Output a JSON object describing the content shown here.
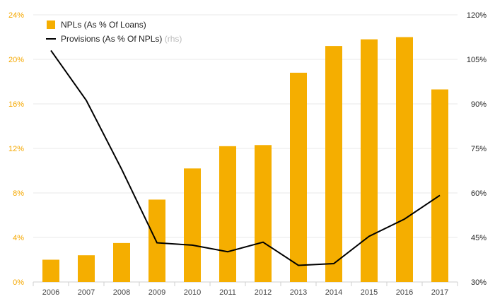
{
  "chart_data": {
    "type": "bar",
    "categories": [
      "2006",
      "2007",
      "2008",
      "2009",
      "2010",
      "2011",
      "2012",
      "2013",
      "2014",
      "2015",
      "2016",
      "2017"
    ],
    "series": [
      {
        "name": "NPLs (As % Of Loans)",
        "type": "bar",
        "axis": "left",
        "color": "#f5ae00",
        "values": [
          2.0,
          2.4,
          3.5,
          7.4,
          10.2,
          12.2,
          12.3,
          18.8,
          21.2,
          21.8,
          22.0,
          17.3
        ]
      },
      {
        "name": "Provisions (As % Of NPLs)",
        "type": "line",
        "axis": "right",
        "color": "#000000",
        "values": [
          108.0,
          91.2,
          68.0,
          43.2,
          42.4,
          40.2,
          43.4,
          35.6,
          36.2,
          45.4,
          51.2,
          59.2
        ]
      }
    ],
    "legend": {
      "bar_label": "NPLs (As % Of Loans)",
      "line_label": "Provisions (As % Of NPLs)",
      "line_suffix": "(rhs)",
      "position": "top-left"
    },
    "y_left": {
      "ylim": [
        0,
        24
      ],
      "ticks": [
        "0%",
        "4%",
        "8%",
        "12%",
        "16%",
        "20%",
        "24%"
      ],
      "tick_color": "#f5a800"
    },
    "y_right": {
      "ylim": [
        30,
        120
      ],
      "ticks": [
        "30%",
        "45%",
        "60%",
        "75%",
        "90%",
        "105%",
        "120%"
      ]
    },
    "grid": true
  }
}
